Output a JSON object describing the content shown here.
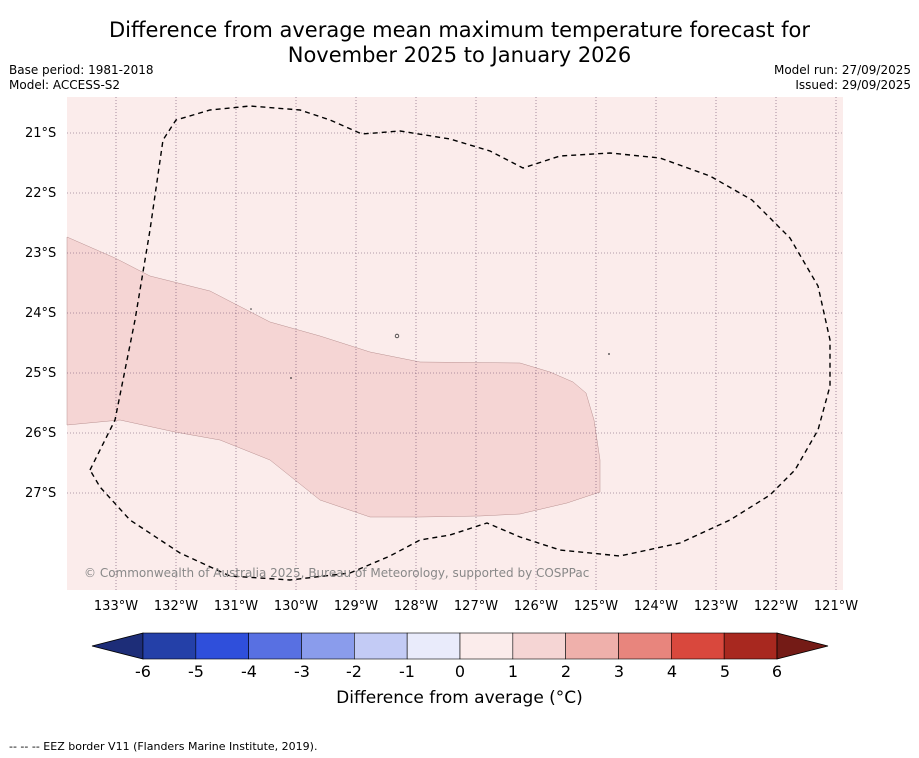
{
  "title": {
    "line1": "Difference from average mean maximum temperature forecast for",
    "line2": "November 2025 to January 2026"
  },
  "meta_left": {
    "base_period": "Base period: 1981-2018",
    "model": "Model: ACCESS-S2"
  },
  "meta_right": {
    "model_run": "Model run: 27/09/2025",
    "issued": "Issued: 29/09/2025"
  },
  "map": {
    "background_color": "#fbeceb",
    "anomaly_zone_color": "#f5d5d4",
    "anomaly_zone_value_range": [
      1,
      2
    ],
    "latitudes": [
      {
        "value": -21,
        "label": "21°S"
      },
      {
        "value": -22,
        "label": "22°S"
      },
      {
        "value": -23,
        "label": "23°S"
      },
      {
        "value": -24,
        "label": "24°S"
      },
      {
        "value": -25,
        "label": "25°S"
      },
      {
        "value": -26,
        "label": "26°S"
      },
      {
        "value": -27,
        "label": "27°S"
      }
    ],
    "longitudes": [
      {
        "value": -133,
        "label": "133°W"
      },
      {
        "value": -132,
        "label": "132°W"
      },
      {
        "value": -131,
        "label": "131°W"
      },
      {
        "value": -130,
        "label": "130°W"
      },
      {
        "value": -129,
        "label": "129°W"
      },
      {
        "value": -128,
        "label": "128°W"
      },
      {
        "value": -127,
        "label": "127°W"
      },
      {
        "value": -126,
        "label": "126°W"
      },
      {
        "value": -125,
        "label": "125°W"
      },
      {
        "value": -124,
        "label": "124°W"
      },
      {
        "value": -123,
        "label": "123°W"
      },
      {
        "value": -122,
        "label": "122°W"
      },
      {
        "value": -121,
        "label": "121°W"
      }
    ],
    "copyright": "© Commonwealth of Australia 2025, Bureau of Meteorology, supported by COSPPac"
  },
  "colorbar": {
    "ticks": [
      "-6",
      "-5",
      "-4",
      "-3",
      "-2",
      "-1",
      "0",
      "1",
      "2",
      "3",
      "4",
      "5",
      "6"
    ],
    "colors": [
      "#2440a8",
      "#2f4fdb",
      "#5870e2",
      "#8a9cec",
      "#c3cbf5",
      "#e9ebfb",
      "#fbeceb",
      "#f5d5d4",
      "#efb0ab",
      "#e8857d",
      "#d9483d",
      "#a8281f"
    ],
    "low_extend_color": "#1d2d78",
    "high_extend_color": "#741b16",
    "label": "Difference from average (°C)"
  },
  "footer": {
    "legend": "--  --  -- EEZ border V11 (Flanders Marine Institute, 2019)."
  }
}
